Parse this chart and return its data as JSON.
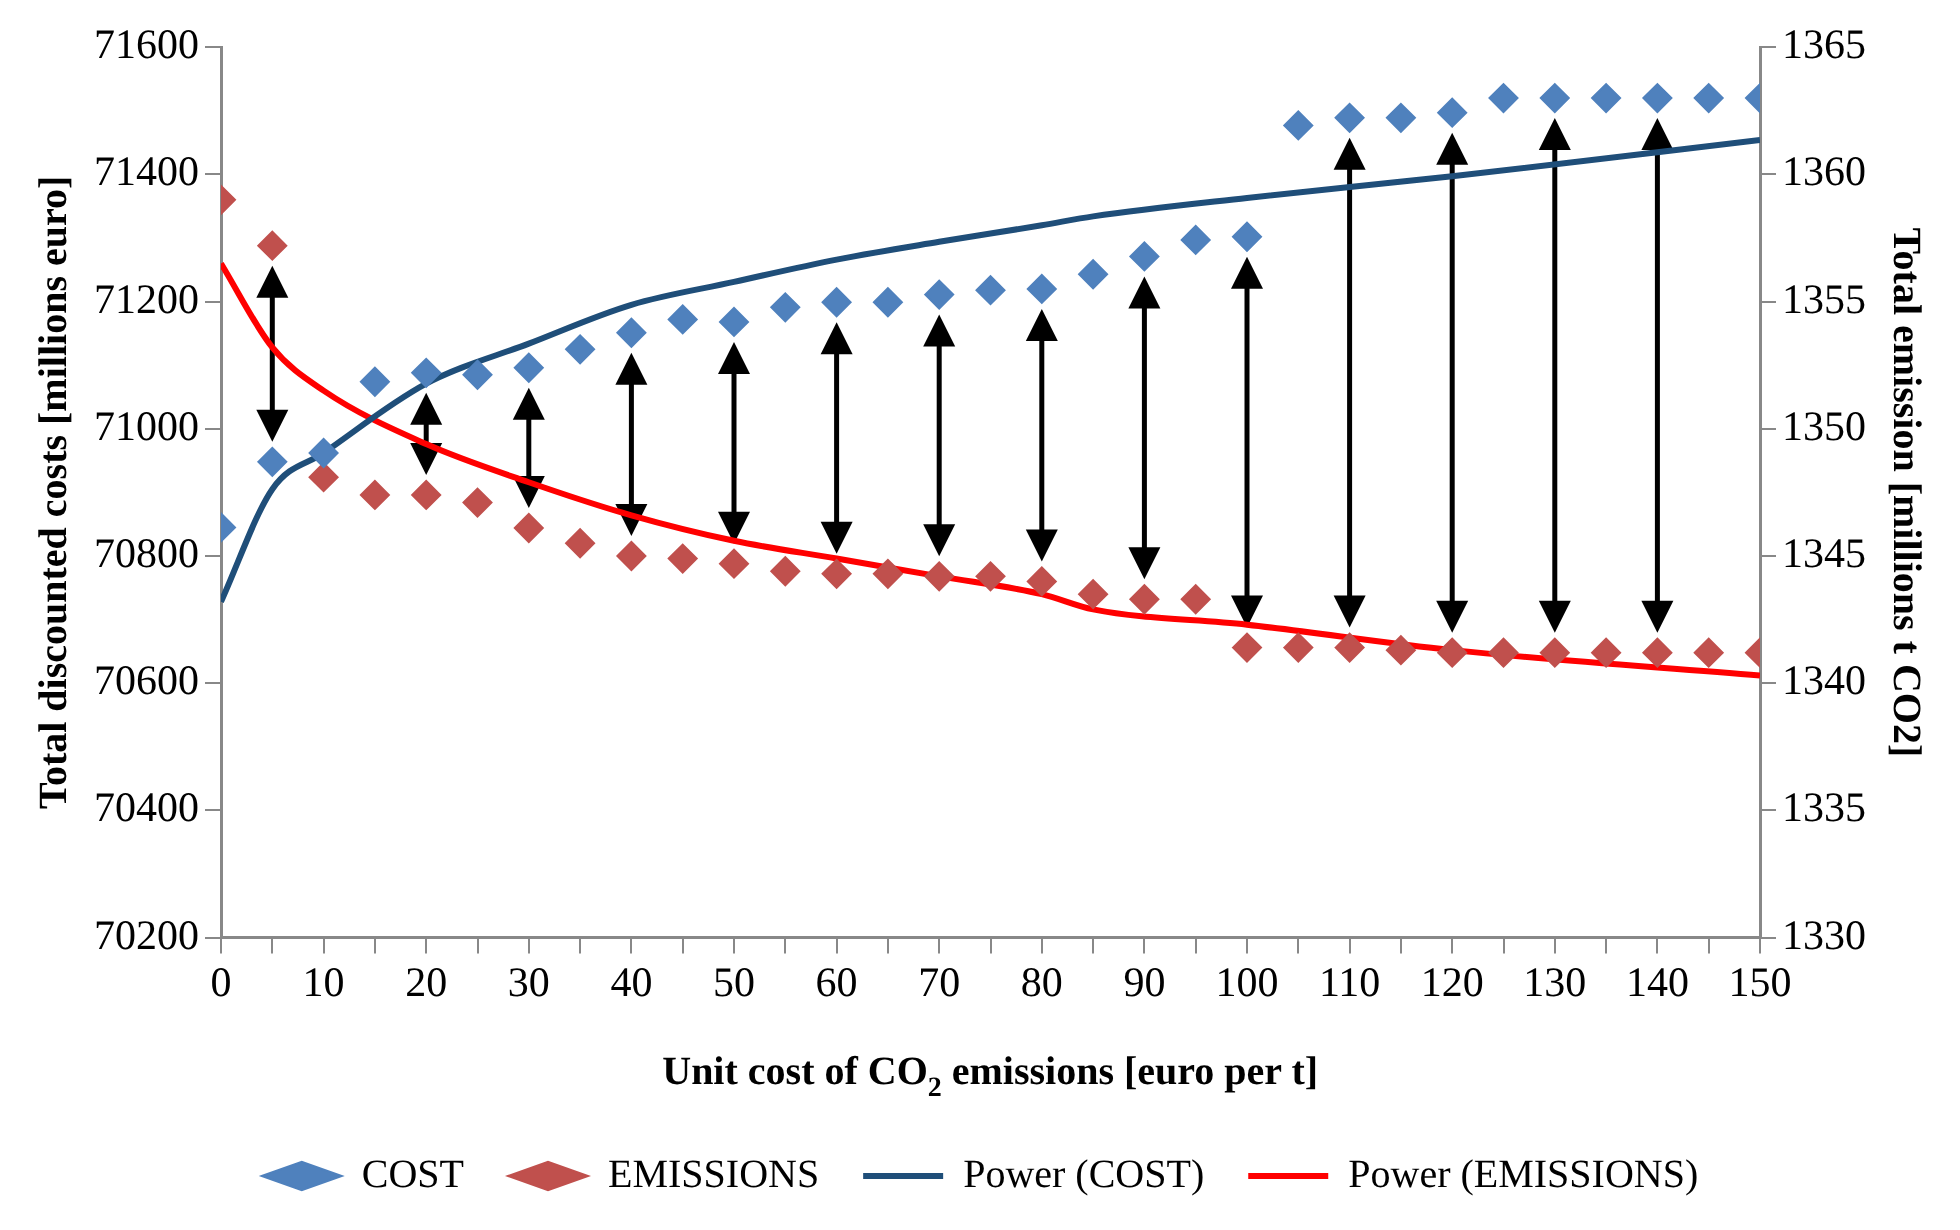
{
  "chart_data": {
    "type": "scatter",
    "xlabel": "Unit cost of CO$_{2}$ emissions [euro per t]",
    "ylabel": "Total discounted costs [millions euro]",
    "y2label": "Total emission [millions t CO2]",
    "x": [
      0,
      5,
      10,
      15,
      20,
      25,
      30,
      35,
      40,
      45,
      50,
      55,
      60,
      65,
      70,
      75,
      80,
      85,
      90,
      95,
      100,
      105,
      110,
      115,
      120,
      125,
      130,
      135,
      140,
      145,
      150
    ],
    "series": [
      {
        "name": "COST",
        "marker": "diamond",
        "color": "#4f81bd",
        "values": [
          70845,
          70948,
          70962,
          71074,
          71088,
          71085,
          71096,
          71125,
          71151,
          71172,
          71168,
          71191,
          71199,
          71199,
          71211,
          71218,
          71220,
          71243,
          71271,
          71297,
          71302,
          71477,
          71489,
          71489,
          71497,
          71520,
          71520,
          71520,
          71520,
          71520,
          71520
        ]
      },
      {
        "name": "EMISSIONS",
        "marker": "diamond",
        "color": "#c0504d",
        "axis": "y2",
        "values": [
          1359.0,
          1357.2,
          1348.1,
          1347.4,
          1347.4,
          1347.1,
          1346.1,
          1345.5,
          1345.0,
          1344.9,
          1344.7,
          1344.4,
          1344.3,
          1344.3,
          1344.2,
          1344.2,
          1344.0,
          1343.5,
          1343.3,
          1343.3,
          1341.4,
          1341.4,
          1341.4,
          1341.3,
          1341.2,
          1341.2,
          1341.2,
          1341.2,
          1341.2,
          1341.2,
          1341.2
        ]
      },
      {
        "name": "Power (COST)",
        "type": "line",
        "marker": "none",
        "color": "#1f4e79",
        "x": [
          0,
          5,
          10,
          20,
          30,
          40,
          50,
          60,
          70,
          80,
          85,
          100,
          120,
          150
        ],
        "values": [
          70728,
          70905,
          70962,
          71071,
          71134,
          71195,
          71231,
          71266,
          71294,
          71320,
          71334,
          71363,
          71397,
          71454
        ]
      },
      {
        "name": "Power (EMISSIONS)",
        "type": "line",
        "marker": "none",
        "color": "#ff0000",
        "axis": "y2",
        "x": [
          0,
          5,
          10,
          20,
          30,
          40,
          50,
          60,
          70,
          80,
          85,
          100,
          120,
          150
        ],
        "values": [
          1356.5,
          1353.2,
          1351.5,
          1349.4,
          1347.9,
          1346.6,
          1345.6,
          1344.9,
          1344.2,
          1343.5,
          1342.9,
          1342.3,
          1341.3,
          1340.3
        ]
      }
    ],
    "xlim": [
      0,
      150
    ],
    "xticks": [
      0,
      {
        "value": 5,
        "label": null
      },
      10,
      {
        "value": 15,
        "label": null
      },
      20,
      {
        "value": 25,
        "label": null
      },
      30,
      {
        "value": 35,
        "label": null
      },
      40,
      {
        "value": 45,
        "label": null
      },
      50,
      {
        "value": 55,
        "label": null
      },
      60,
      {
        "value": 65,
        "label": null
      },
      70,
      {
        "value": 75,
        "label": null
      },
      80,
      {
        "value": 85,
        "label": null
      },
      90,
      {
        "value": 95,
        "label": null
      },
      100,
      {
        "value": 105,
        "label": null
      },
      110,
      {
        "value": 115,
        "label": null
      },
      120,
      {
        "value": 125,
        "label": null
      },
      130,
      {
        "value": 135,
        "label": null
      },
      140,
      {
        "value": 145,
        "label": null
      },
      150
    ],
    "ylim": [
      70200,
      71600
    ],
    "yticks": [
      70200,
      70400,
      70600,
      70800,
      71000,
      71200,
      71400,
      71600
    ],
    "y2lim": [
      1330,
      1365
    ],
    "y2ticks": [
      1330,
      1335,
      1340,
      1345,
      1350,
      1355,
      1360,
      1365
    ],
    "grid": false,
    "legend": "bottom"
  }
}
